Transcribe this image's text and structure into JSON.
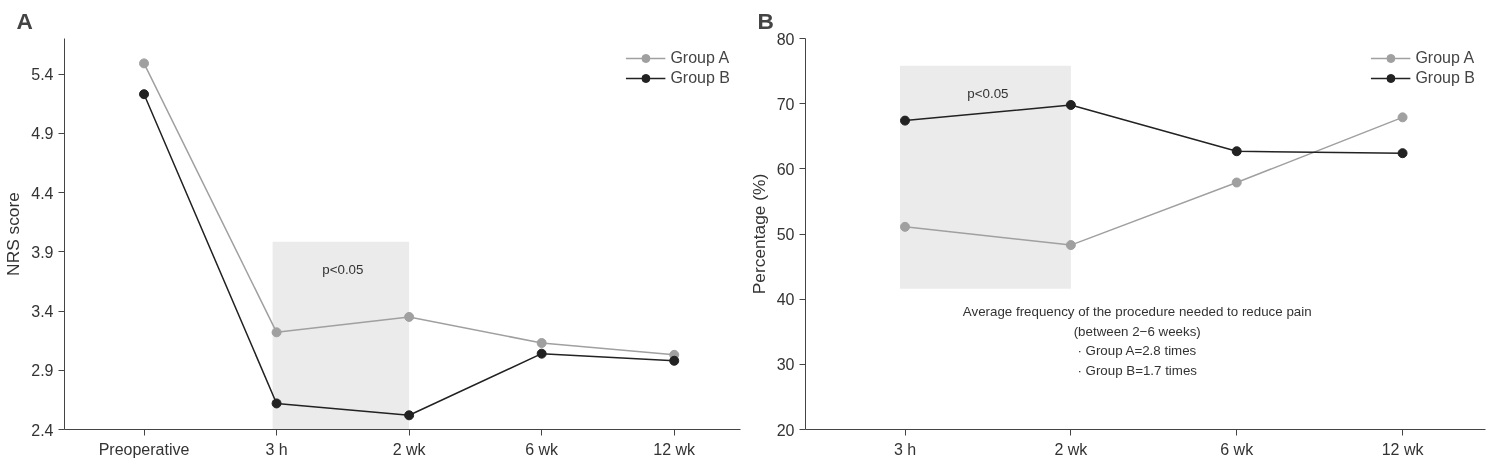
{
  "chart_data": [
    {
      "type": "line",
      "title": "A",
      "ylabel": "NRS score",
      "categories": [
        "Preoperative",
        "3 h",
        "2 wk",
        "6 wk",
        "12 wk"
      ],
      "series": [
        {
          "name": "Group A",
          "color": "#a0a0a0",
          "values": [
            5.49,
            3.22,
            3.35,
            3.13,
            3.03
          ]
        },
        {
          "name": "Group B",
          "color": "#222222",
          "values": [
            5.23,
            2.62,
            2.52,
            3.04,
            2.98
          ]
        }
      ],
      "ylim": [
        2.4,
        5.7
      ],
      "yticks": [
        2.4,
        2.9,
        3.4,
        3.9,
        4.4,
        4.9,
        5.4
      ],
      "bands": [
        {
          "axis": "x",
          "from": "3 h",
          "to": "2 wk",
          "label": "p<0.05",
          "color": "#ebebeb"
        }
      ],
      "marker": "circle",
      "grid": false,
      "legend": "top right"
    },
    {
      "type": "line",
      "title": "B",
      "ylabel": "Percentage (%)",
      "categories": [
        "3 h",
        "2 wk",
        "6 wk",
        "12 wk"
      ],
      "series": [
        {
          "name": "Group A",
          "color": "#a0a0a0",
          "values": [
            51.1,
            48.3,
            57.9,
            67.9
          ]
        },
        {
          "name": "Group B",
          "color": "#222222",
          "values": [
            67.4,
            69.8,
            62.7,
            62.4
          ]
        }
      ],
      "ylim": [
        20,
        80
      ],
      "yticks": [
        20,
        30,
        40,
        50,
        60,
        70,
        80
      ],
      "bands": [
        {
          "axis": "x",
          "from": "3 h",
          "to": "2 wk",
          "label": "p<0.05",
          "color": "#ebebeb"
        }
      ],
      "annotations": [
        "Average frequency of the procedure needed to reduce pain\n(between 2−6 weeks)\n· Group A=2.8 times\n· Group B=1.7 times"
      ],
      "marker": "circle",
      "grid": false,
      "legend": "top right"
    }
  ]
}
